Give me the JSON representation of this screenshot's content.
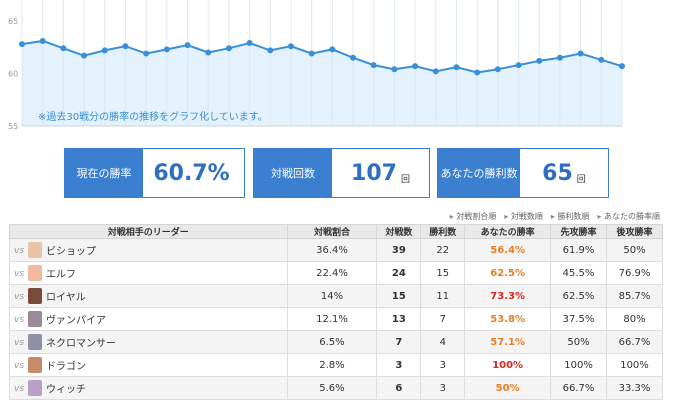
{
  "chart_data": {
    "type": "line",
    "y_ticks": [
      "65",
      "60",
      "55"
    ],
    "ylim": [
      55,
      67
    ],
    "values": [
      62.8,
      63.1,
      62.4,
      61.7,
      62.2,
      62.6,
      61.9,
      62.3,
      62.7,
      62.0,
      62.4,
      62.9,
      62.2,
      62.6,
      61.9,
      62.3,
      61.5,
      60.8,
      60.4,
      60.7,
      60.2,
      60.6,
      60.1,
      60.4,
      60.8,
      61.2,
      61.5,
      61.9,
      61.3,
      60.7
    ],
    "line_color": "#3a8fd9",
    "fill_color": "#e3f2fc",
    "grid": true,
    "note": "※過去30戦分の勝率の推移をグラフ化しています。"
  },
  "stats": [
    {
      "label": "現在の勝率",
      "value": "60.7%",
      "unit": ""
    },
    {
      "label": "対戦回数",
      "value": "107",
      "unit": "回"
    },
    {
      "label": "あなたの勝利数",
      "value": "65",
      "unit": "回"
    }
  ],
  "sort_links": [
    "対戦割合順",
    "対戦数順",
    "勝利数順",
    "あなたの勝率順"
  ],
  "table": {
    "headers": [
      "対戦相手のリーダー",
      "対戦割合",
      "対戦数",
      "勝利数",
      "あなたの勝率",
      "先攻勝率",
      "後攻勝率"
    ],
    "vs_label": "vs",
    "rows": [
      {
        "leader": "ビショップ",
        "avatar_color": "#e8c3a8",
        "ratio": "36.4%",
        "count": "39",
        "wins": "22",
        "winrate": "56.4%",
        "wr_color": "#e67e22",
        "first": "61.9%",
        "second": "50%"
      },
      {
        "leader": "エルフ",
        "avatar_color": "#f0b9a0",
        "ratio": "22.4%",
        "count": "24",
        "wins": "15",
        "winrate": "62.5%",
        "wr_color": "#e67e22",
        "first": "45.5%",
        "second": "76.9%"
      },
      {
        "leader": "ロイヤル",
        "avatar_color": "#7a4a3a",
        "ratio": "14%",
        "count": "15",
        "wins": "11",
        "winrate": "73.3%",
        "wr_color": "#d7261e",
        "first": "62.5%",
        "second": "85.7%"
      },
      {
        "leader": "ヴァンパイア",
        "avatar_color": "#9a8a9a",
        "ratio": "12.1%",
        "count": "13",
        "wins": "7",
        "winrate": "53.8%",
        "wr_color": "#e67e22",
        "first": "37.5%",
        "second": "80%"
      },
      {
        "leader": "ネクロマンサー",
        "avatar_color": "#8f8fa8",
        "ratio": "6.5%",
        "count": "7",
        "wins": "4",
        "winrate": "57.1%",
        "wr_color": "#e67e22",
        "first": "50%",
        "second": "66.7%"
      },
      {
        "leader": "ドラゴン",
        "avatar_color": "#c98a6a",
        "ratio": "2.8%",
        "count": "3",
        "wins": "3",
        "winrate": "100%",
        "wr_color": "#d7261e",
        "first": "100%",
        "second": "100%"
      },
      {
        "leader": "ウィッチ",
        "avatar_color": "#b9a0c8",
        "ratio": "5.6%",
        "count": "6",
        "wins": "3",
        "winrate": "50%",
        "wr_color": "#e67e22",
        "first": "66.7%",
        "second": "33.3%"
      }
    ]
  }
}
